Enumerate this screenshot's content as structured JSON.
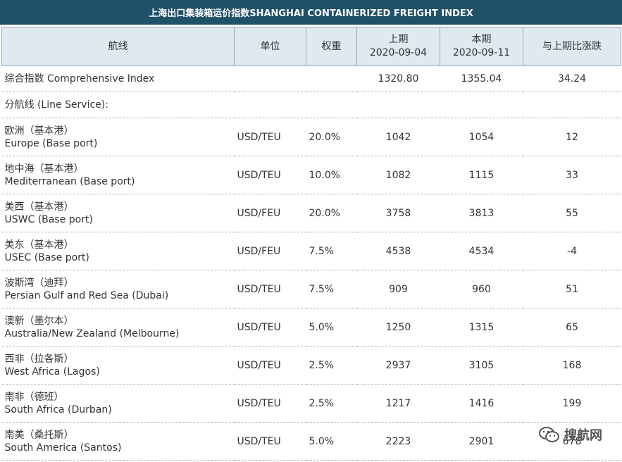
{
  "title": "上海出口集装箱运价指数SHANGHAI CONTAINERIZED FREIGHT INDEX",
  "headers": {
    "route": "航线",
    "unit": "单位",
    "weight": "权重",
    "prev_label": "上期",
    "prev_date": "2020-09-04",
    "curr_label": "本期",
    "curr_date": "2020-09-11",
    "change": "与上期比涨跌"
  },
  "composite": {
    "label": "综合指数 Comprehensive Index",
    "prev": "1320.80",
    "curr": "1355.04",
    "change": "34.24"
  },
  "line_service_label": "分航线 (Line Service):",
  "rows": [
    {
      "cn": "欧洲（基本港）",
      "en": "Europe (Base port)",
      "unit": "USD/TEU",
      "weight": "20.0%",
      "prev": "1042",
      "curr": "1054",
      "change": "12"
    },
    {
      "cn": "地中海（基本港）",
      "en": "Mediterranean (Base port)",
      "unit": "USD/TEU",
      "weight": "10.0%",
      "prev": "1082",
      "curr": "1115",
      "change": "33"
    },
    {
      "cn": "美西（基本港）",
      "en": "USWC (Base port)",
      "unit": "USD/FEU",
      "weight": "20.0%",
      "prev": "3758",
      "curr": "3813",
      "change": "55"
    },
    {
      "cn": "美东（基本港）",
      "en": "USEC (Base port)",
      "unit": "USD/FEU",
      "weight": "7.5%",
      "prev": "4538",
      "curr": "4534",
      "change": "-4"
    },
    {
      "cn": "波斯湾（迪拜）",
      "en": "Persian Gulf and Red Sea (Dubai)",
      "unit": "USD/TEU",
      "weight": "7.5%",
      "prev": "909",
      "curr": "960",
      "change": "51"
    },
    {
      "cn": "澳新（墨尔本）",
      "en": "Australia/New Zealand (Melbourne)",
      "unit": "USD/TEU",
      "weight": "5.0%",
      "prev": "1250",
      "curr": "1315",
      "change": "65"
    },
    {
      "cn": "西非（拉各斯）",
      "en": "West Africa (Lagos)",
      "unit": "USD/TEU",
      "weight": "2.5%",
      "prev": "2937",
      "curr": "3105",
      "change": "168"
    },
    {
      "cn": "南非（德班）",
      "en": "South Africa (Durban)",
      "unit": "USD/TEU",
      "weight": "2.5%",
      "prev": "1217",
      "curr": "1416",
      "change": "199"
    },
    {
      "cn": "南美（桑托斯）",
      "en": "South America (Santos)",
      "unit": "USD/TEU",
      "weight": "5.0%",
      "prev": "2223",
      "curr": "2901",
      "change": "678"
    }
  ],
  "watermark": {
    "text": "搜航网",
    "icon": "wechat-icon"
  }
}
